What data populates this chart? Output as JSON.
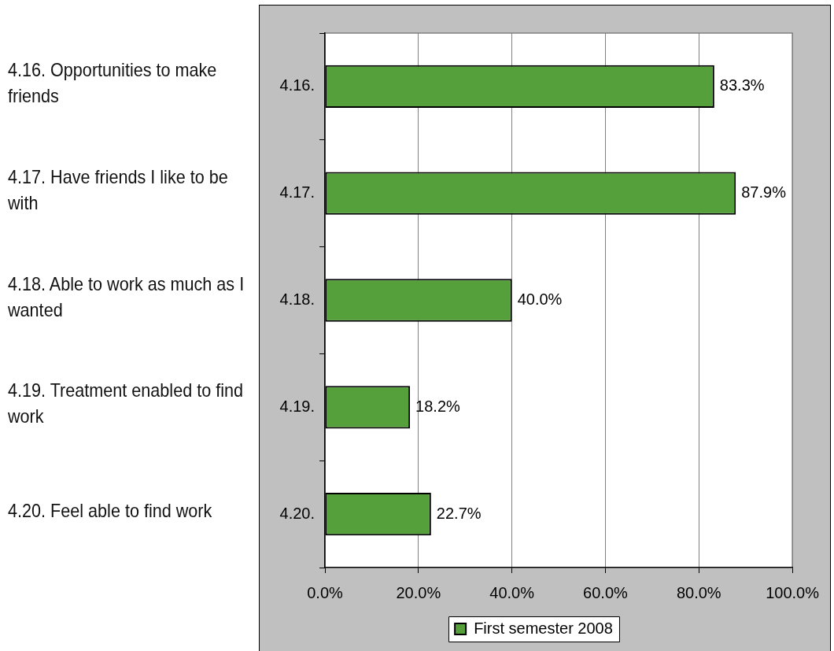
{
  "chart_data": {
    "type": "bar",
    "orientation": "horizontal",
    "categories": [
      "4.16.",
      "4.17.",
      "4.18.",
      "4.19.",
      "4.20."
    ],
    "series": [
      {
        "name": "First semester 2008",
        "color": "#56a03c",
        "values": [
          83.3,
          87.9,
          40.0,
          18.2,
          22.7
        ],
        "value_labels": [
          "83.3%",
          "87.9%",
          "40.0%",
          "18.2%",
          "22.7%"
        ]
      }
    ],
    "xlim": [
      0,
      100
    ],
    "xticks": [
      {
        "value": 0,
        "label": "0.0%"
      },
      {
        "value": 20,
        "label": "20.0%"
      },
      {
        "value": 40,
        "label": "40.0%"
      },
      {
        "value": 60,
        "label": "60.0%"
      },
      {
        "value": 80,
        "label": "80.0%"
      },
      {
        "value": 100,
        "label": "100.0%"
      }
    ],
    "grid": "x",
    "legend": "bottom",
    "annotations": [
      "4.16. Opportunities to make friends",
      "4.17. Have friends I like to be with",
      "4.18. Able to work as much as I wanted",
      "4.19. Treatment enabled to find work",
      "4.20. Feel able to find work"
    ]
  }
}
